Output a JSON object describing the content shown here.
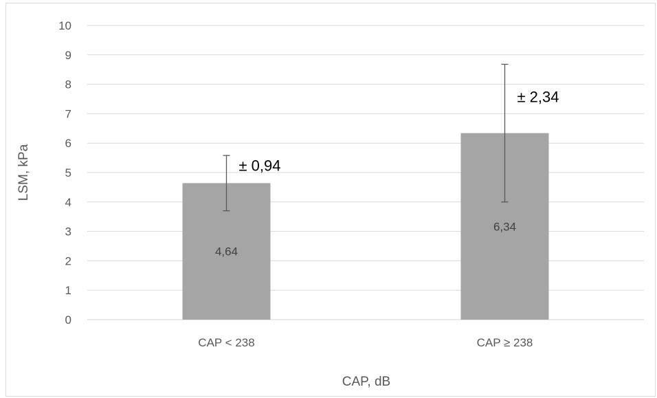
{
  "chart_data": {
    "type": "bar",
    "title": "",
    "xlabel": "CAP, dB",
    "ylabel": "LSM, kPa",
    "categories": [
      "CAP < 238",
      "CAP ≥ 238"
    ],
    "values": [
      4.64,
      6.34
    ],
    "value_labels": [
      "4,64",
      "6,34"
    ],
    "errors": [
      0.94,
      2.34
    ],
    "error_labels": [
      "± 0,94",
      "± 2,34"
    ],
    "ylim": [
      0,
      10
    ],
    "yticks": [
      0,
      1,
      2,
      3,
      4,
      5,
      6,
      7,
      8,
      9,
      10
    ],
    "grid": true,
    "legend": "none",
    "colors": {
      "bar": "#a5a5a5",
      "grid": "#d9d9d9",
      "error_bar": "#595959",
      "axis": "#d9d9d9"
    }
  }
}
